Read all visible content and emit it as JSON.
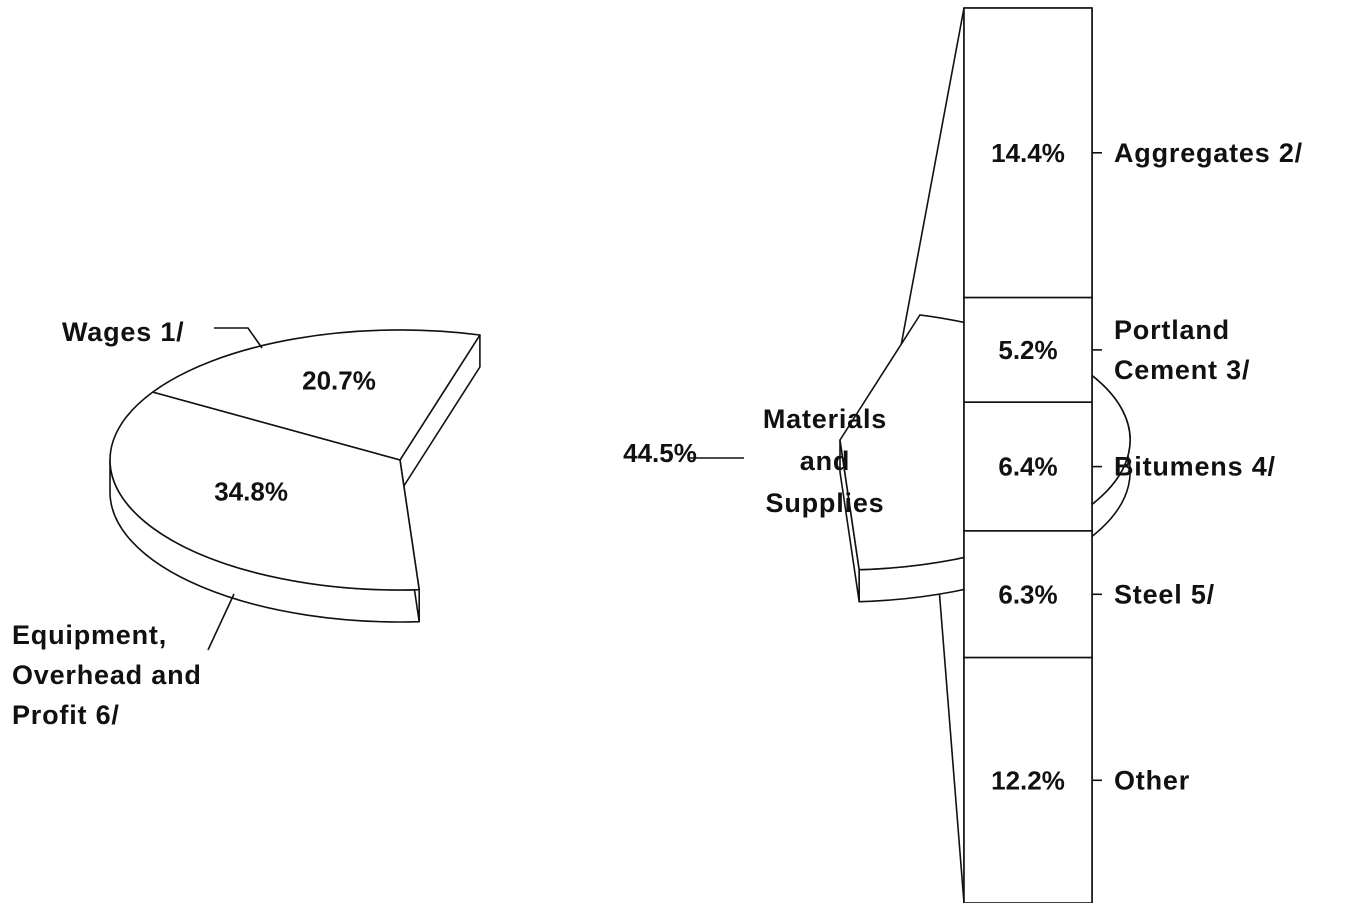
{
  "chart_data": {
    "type": "pie",
    "values_unit": "%",
    "slices": [
      {
        "value": 20.7,
        "value_label": "20.7%",
        "label": "Wages 1/"
      },
      {
        "value": 34.8,
        "value_label": "34.8%",
        "label": [
          "Equipment,",
          "Overhead and",
          "Profit 6/"
        ]
      },
      {
        "value": 44.5,
        "value_label": "44.5%",
        "label": [
          "Materials",
          "and",
          "Supplies"
        ],
        "exploded": true
      }
    ],
    "breakdown": {
      "of_slice": "Materials and Supplies",
      "type": "stacked_bar",
      "segments": [
        {
          "value": 14.4,
          "value_label": "14.4%",
          "label": [
            "Aggregates  2/"
          ]
        },
        {
          "value": 5.2,
          "value_label": "5.2%",
          "label": [
            "Portland",
            "Cement  3/"
          ]
        },
        {
          "value": 6.4,
          "value_label": "6.4%",
          "label": [
            "Bitumens  4/"
          ]
        },
        {
          "value": 6.3,
          "value_label": "6.3%",
          "label": [
            "Steel  5/"
          ]
        },
        {
          "value": 12.2,
          "value_label": "12.2%",
          "label": [
            "Other"
          ]
        }
      ]
    },
    "colors": {
      "stroke": "#111111",
      "fill": "#ffffff",
      "text": "#111111"
    }
  }
}
